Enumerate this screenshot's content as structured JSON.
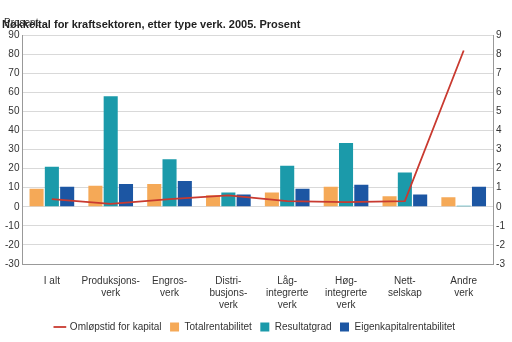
{
  "chart_data": {
    "type": "bar",
    "title": "Nøkkeltal for kraftsektoren, etter type verk. 2005. Prosent",
    "y_label": "Prosent",
    "categories": [
      "I alt",
      "Produksjons-\nverk",
      "Engros-\nverk",
      "Distri-\nbusjons-\nverk",
      "Låg-\nintegrerte\nverk",
      "Høg-\nintegrerte\nverk",
      "Nett-\nselskap",
      "Andre\nverk"
    ],
    "series": [
      {
        "name": "Totalrentabilitet",
        "color": "#f5a957",
        "values": [
          9.5,
          11,
          12,
          6,
          7.5,
          10.5,
          5.5,
          5
        ]
      },
      {
        "name": "Resultatgrad",
        "color": "#1b9aaa",
        "values": [
          21,
          58,
          25,
          7.5,
          21.5,
          33.5,
          18,
          0.5
        ]
      },
      {
        "name": "Eigenkapitalrentabilitet",
        "color": "#1c56a3",
        "values": [
          10.5,
          12,
          13.5,
          6.5,
          9.5,
          11.5,
          6.5,
          10.5
        ]
      },
      {
        "name": "Omløpstid for kapital",
        "color": "#c93a30",
        "type": "line",
        "axis": "y2",
        "values": [
          0.4,
          0.15,
          0.4,
          0.6,
          0.3,
          0.25,
          0.3,
          8.2
        ]
      }
    ],
    "ylim": [
      -30,
      90
    ],
    "yticks": [
      -30,
      -20,
      -10,
      0,
      10,
      20,
      30,
      40,
      50,
      60,
      70,
      80,
      90
    ],
    "y2lim": [
      -3,
      9
    ],
    "y2ticks": [
      -3,
      -2,
      -1,
      0,
      1,
      2,
      3,
      4,
      5,
      6,
      7,
      8,
      9
    ],
    "grid": true,
    "legend": "bottom"
  }
}
